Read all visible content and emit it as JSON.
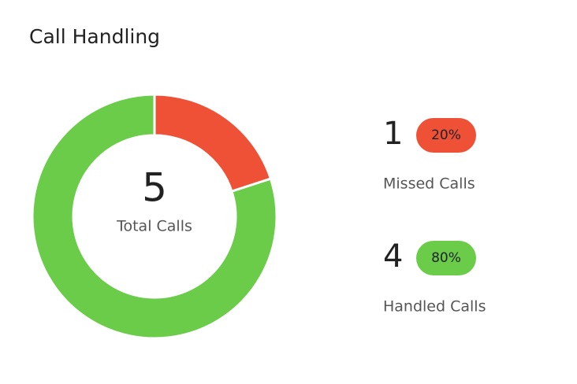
{
  "chart_data": {
    "type": "donut",
    "title": "Call Handling",
    "total": 5,
    "total_label": "Total Calls",
    "categories": [
      "Missed Calls",
      "Handled Calls"
    ],
    "values": [
      1,
      4
    ],
    "shares": [
      {
        "value": 20,
        "label": "20%"
      },
      {
        "value": 80,
        "label": "80%"
      }
    ],
    "colors": [
      "#ef5137",
      "#6acc49"
    ]
  }
}
